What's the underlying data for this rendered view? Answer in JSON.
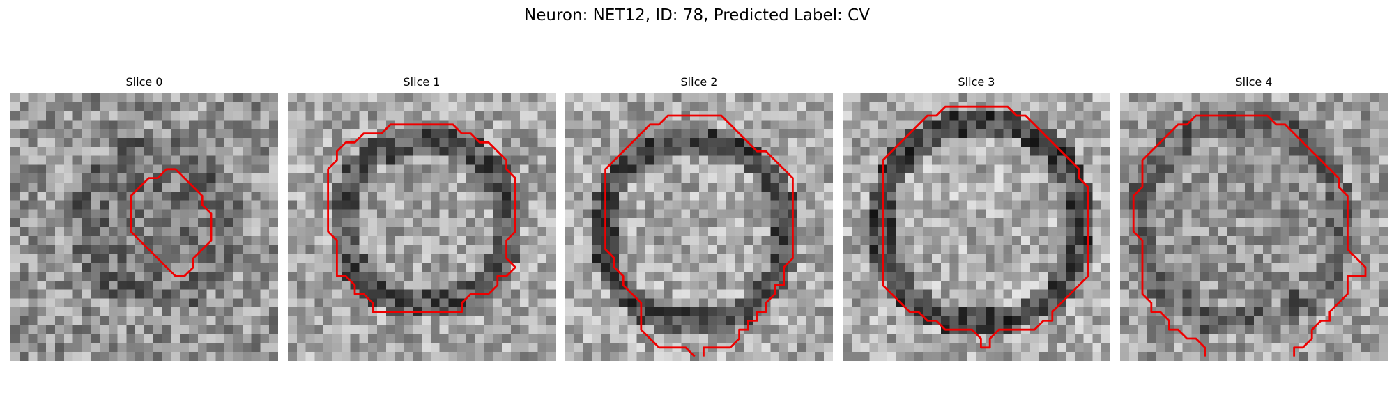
{
  "figure": {
    "suptitle": "Neuron: NET12, ID: 78, Predicted Label: CV"
  },
  "colors": {
    "background": "#ffffff",
    "contour": "#ee0000",
    "colormap": "gray"
  },
  "slices": [
    {
      "title": "Slice 0",
      "contour_closed": true,
      "contour": [
        [
          17,
          8
        ],
        [
          18,
          8
        ],
        [
          19,
          9
        ],
        [
          20,
          10
        ],
        [
          21,
          11
        ],
        [
          21,
          12
        ],
        [
          22,
          13
        ],
        [
          22,
          14
        ],
        [
          22,
          15
        ],
        [
          22,
          16
        ],
        [
          21,
          17
        ],
        [
          20,
          18
        ],
        [
          20,
          19
        ],
        [
          19,
          20
        ],
        [
          18,
          20
        ],
        [
          17,
          19
        ],
        [
          16,
          18
        ],
        [
          15,
          17
        ],
        [
          14,
          16
        ],
        [
          13,
          15
        ],
        [
          13,
          14
        ],
        [
          13,
          13
        ],
        [
          13,
          12
        ],
        [
          13,
          11
        ],
        [
          14,
          10
        ],
        [
          15,
          9
        ],
        [
          16,
          9
        ]
      ]
    },
    {
      "title": "Slice 1",
      "contour_closed": true,
      "contour": [
        [
          11,
          3
        ],
        [
          12,
          3
        ],
        [
          13,
          3
        ],
        [
          14,
          3
        ],
        [
          15,
          3
        ],
        [
          16,
          3
        ],
        [
          17,
          3
        ],
        [
          18,
          3
        ],
        [
          19,
          4
        ],
        [
          20,
          4
        ],
        [
          21,
          5
        ],
        [
          22,
          5
        ],
        [
          23,
          6
        ],
        [
          24,
          7
        ],
        [
          24,
          8
        ],
        [
          25,
          9
        ],
        [
          25,
          10
        ],
        [
          25,
          11
        ],
        [
          25,
          12
        ],
        [
          25,
          13
        ],
        [
          25,
          14
        ],
        [
          25,
          15
        ],
        [
          24,
          16
        ],
        [
          24,
          17
        ],
        [
          24,
          18
        ],
        [
          25,
          19
        ],
        [
          24,
          20
        ],
        [
          23,
          20
        ],
        [
          23,
          21
        ],
        [
          22,
          22
        ],
        [
          21,
          22
        ],
        [
          20,
          22
        ],
        [
          19,
          23
        ],
        [
          19,
          24
        ],
        [
          18,
          24
        ],
        [
          17,
          24
        ],
        [
          16,
          24
        ],
        [
          15,
          24
        ],
        [
          14,
          24
        ],
        [
          13,
          24
        ],
        [
          12,
          24
        ],
        [
          11,
          24
        ],
        [
          10,
          24
        ],
        [
          9,
          24
        ],
        [
          9,
          23
        ],
        [
          8,
          22
        ],
        [
          7,
          22
        ],
        [
          7,
          21
        ],
        [
          6,
          20
        ],
        [
          5,
          20
        ],
        [
          5,
          19
        ],
        [
          5,
          18
        ],
        [
          5,
          17
        ],
        [
          5,
          16
        ],
        [
          4,
          15
        ],
        [
          4,
          14
        ],
        [
          4,
          13
        ],
        [
          4,
          12
        ],
        [
          4,
          11
        ],
        [
          4,
          10
        ],
        [
          4,
          9
        ],
        [
          4,
          8
        ],
        [
          5,
          7
        ],
        [
          5,
          6
        ],
        [
          6,
          5
        ],
        [
          7,
          5
        ],
        [
          8,
          4
        ],
        [
          9,
          4
        ],
        [
          10,
          4
        ]
      ]
    },
    {
      "title": "Slice 2",
      "contour_closed": false,
      "contour": [
        [
          15,
          29
        ],
        [
          15,
          28
        ],
        [
          16,
          28
        ],
        [
          17,
          28
        ],
        [
          18,
          28
        ],
        [
          19,
          27
        ],
        [
          19,
          26
        ],
        [
          20,
          26
        ],
        [
          20,
          25
        ],
        [
          21,
          25
        ],
        [
          21,
          24
        ],
        [
          22,
          24
        ],
        [
          22,
          23
        ],
        [
          23,
          22
        ],
        [
          23,
          21
        ],
        [
          24,
          21
        ],
        [
          24,
          20
        ],
        [
          24,
          19
        ],
        [
          25,
          18
        ],
        [
          25,
          17
        ],
        [
          25,
          16
        ],
        [
          25,
          15
        ],
        [
          25,
          14
        ],
        [
          25,
          13
        ],
        [
          25,
          12
        ],
        [
          25,
          11
        ],
        [
          25,
          10
        ],
        [
          25,
          9
        ],
        [
          24,
          8
        ],
        [
          23,
          7
        ],
        [
          22,
          6
        ],
        [
          21,
          6
        ],
        [
          20,
          5
        ],
        [
          19,
          4
        ],
        [
          18,
          3
        ],
        [
          17,
          2
        ],
        [
          16,
          2
        ],
        [
          15,
          2
        ],
        [
          14,
          2
        ],
        [
          13,
          2
        ],
        [
          12,
          2
        ],
        [
          11,
          2
        ],
        [
          10,
          3
        ],
        [
          9,
          3
        ],
        [
          8,
          4
        ],
        [
          7,
          5
        ],
        [
          6,
          6
        ],
        [
          5,
          7
        ],
        [
          4,
          8
        ],
        [
          4,
          9
        ],
        [
          4,
          10
        ],
        [
          4,
          11
        ],
        [
          4,
          12
        ],
        [
          4,
          13
        ],
        [
          4,
          14
        ],
        [
          4,
          15
        ],
        [
          4,
          16
        ],
        [
          4,
          17
        ],
        [
          5,
          18
        ],
        [
          5,
          19
        ],
        [
          6,
          20
        ],
        [
          6,
          21
        ],
        [
          7,
          22
        ],
        [
          8,
          23
        ],
        [
          8,
          24
        ],
        [
          8,
          25
        ],
        [
          8,
          26
        ],
        [
          9,
          27
        ],
        [
          10,
          28
        ],
        [
          11,
          28
        ],
        [
          12,
          28
        ],
        [
          13,
          28
        ],
        [
          14,
          29
        ]
      ]
    },
    {
      "title": "Slice 3",
      "contour_closed": true,
      "contour": [
        [
          12,
          1
        ],
        [
          13,
          1
        ],
        [
          14,
          1
        ],
        [
          15,
          1
        ],
        [
          16,
          1
        ],
        [
          17,
          1
        ],
        [
          18,
          1
        ],
        [
          19,
          2
        ],
        [
          20,
          2
        ],
        [
          21,
          3
        ],
        [
          22,
          4
        ],
        [
          23,
          5
        ],
        [
          24,
          6
        ],
        [
          25,
          7
        ],
        [
          26,
          8
        ],
        [
          26,
          9
        ],
        [
          27,
          10
        ],
        [
          27,
          11
        ],
        [
          27,
          12
        ],
        [
          27,
          13
        ],
        [
          27,
          14
        ],
        [
          27,
          15
        ],
        [
          27,
          16
        ],
        [
          27,
          17
        ],
        [
          27,
          18
        ],
        [
          27,
          19
        ],
        [
          27,
          20
        ],
        [
          26,
          21
        ],
        [
          25,
          22
        ],
        [
          24,
          23
        ],
        [
          23,
          24
        ],
        [
          23,
          25
        ],
        [
          22,
          25
        ],
        [
          21,
          26
        ],
        [
          20,
          26
        ],
        [
          19,
          26
        ],
        [
          18,
          26
        ],
        [
          17,
          26
        ],
        [
          16,
          27
        ],
        [
          16,
          28
        ],
        [
          15,
          28
        ],
        [
          15,
          27
        ],
        [
          14,
          26
        ],
        [
          13,
          26
        ],
        [
          12,
          26
        ],
        [
          11,
          26
        ],
        [
          10,
          25
        ],
        [
          9,
          25
        ],
        [
          8,
          24
        ],
        [
          7,
          24
        ],
        [
          6,
          23
        ],
        [
          5,
          22
        ],
        [
          4,
          21
        ],
        [
          4,
          20
        ],
        [
          4,
          19
        ],
        [
          4,
          18
        ],
        [
          4,
          17
        ],
        [
          4,
          16
        ],
        [
          4,
          15
        ],
        [
          4,
          14
        ],
        [
          4,
          13
        ],
        [
          4,
          12
        ],
        [
          4,
          11
        ],
        [
          4,
          10
        ],
        [
          4,
          9
        ],
        [
          4,
          8
        ],
        [
          4,
          7
        ],
        [
          5,
          6
        ],
        [
          6,
          5
        ],
        [
          7,
          4
        ],
        [
          8,
          3
        ],
        [
          9,
          2
        ],
        [
          10,
          2
        ],
        [
          11,
          1
        ]
      ]
    },
    {
      "title": "Slice 4",
      "contour_closed": false,
      "contour": [
        [
          9,
          29
        ],
        [
          9,
          28
        ],
        [
          8,
          27
        ],
        [
          7,
          27
        ],
        [
          6,
          26
        ],
        [
          5,
          26
        ],
        [
          5,
          25
        ],
        [
          4,
          24
        ],
        [
          3,
          24
        ],
        [
          3,
          23
        ],
        [
          2,
          22
        ],
        [
          2,
          21
        ],
        [
          2,
          20
        ],
        [
          2,
          19
        ],
        [
          2,
          18
        ],
        [
          2,
          17
        ],
        [
          2,
          16
        ],
        [
          1,
          15
        ],
        [
          1,
          14
        ],
        [
          1,
          13
        ],
        [
          1,
          12
        ],
        [
          1,
          11
        ],
        [
          2,
          10
        ],
        [
          2,
          9
        ],
        [
          2,
          8
        ],
        [
          2,
          7
        ],
        [
          3,
          6
        ],
        [
          4,
          5
        ],
        [
          5,
          4
        ],
        [
          6,
          3
        ],
        [
          7,
          3
        ],
        [
          8,
          2
        ],
        [
          9,
          2
        ],
        [
          10,
          2
        ],
        [
          11,
          2
        ],
        [
          12,
          2
        ],
        [
          13,
          2
        ],
        [
          14,
          2
        ],
        [
          15,
          2
        ],
        [
          16,
          2
        ],
        [
          17,
          3
        ],
        [
          18,
          3
        ],
        [
          19,
          4
        ],
        [
          20,
          5
        ],
        [
          21,
          6
        ],
        [
          22,
          7
        ],
        [
          23,
          8
        ],
        [
          24,
          9
        ],
        [
          24,
          10
        ],
        [
          25,
          11
        ],
        [
          25,
          12
        ],
        [
          25,
          13
        ],
        [
          25,
          14
        ],
        [
          25,
          15
        ],
        [
          25,
          16
        ],
        [
          25,
          17
        ],
        [
          26,
          18
        ],
        [
          27,
          19
        ],
        [
          27,
          20
        ],
        [
          26,
          20
        ],
        [
          25,
          20
        ],
        [
          25,
          21
        ],
        [
          25,
          22
        ],
        [
          24,
          23
        ],
        [
          23,
          24
        ],
        [
          23,
          25
        ],
        [
          22,
          25
        ],
        [
          21,
          26
        ],
        [
          21,
          27
        ],
        [
          20,
          28
        ],
        [
          19,
          28
        ],
        [
          19,
          29
        ]
      ]
    }
  ]
}
